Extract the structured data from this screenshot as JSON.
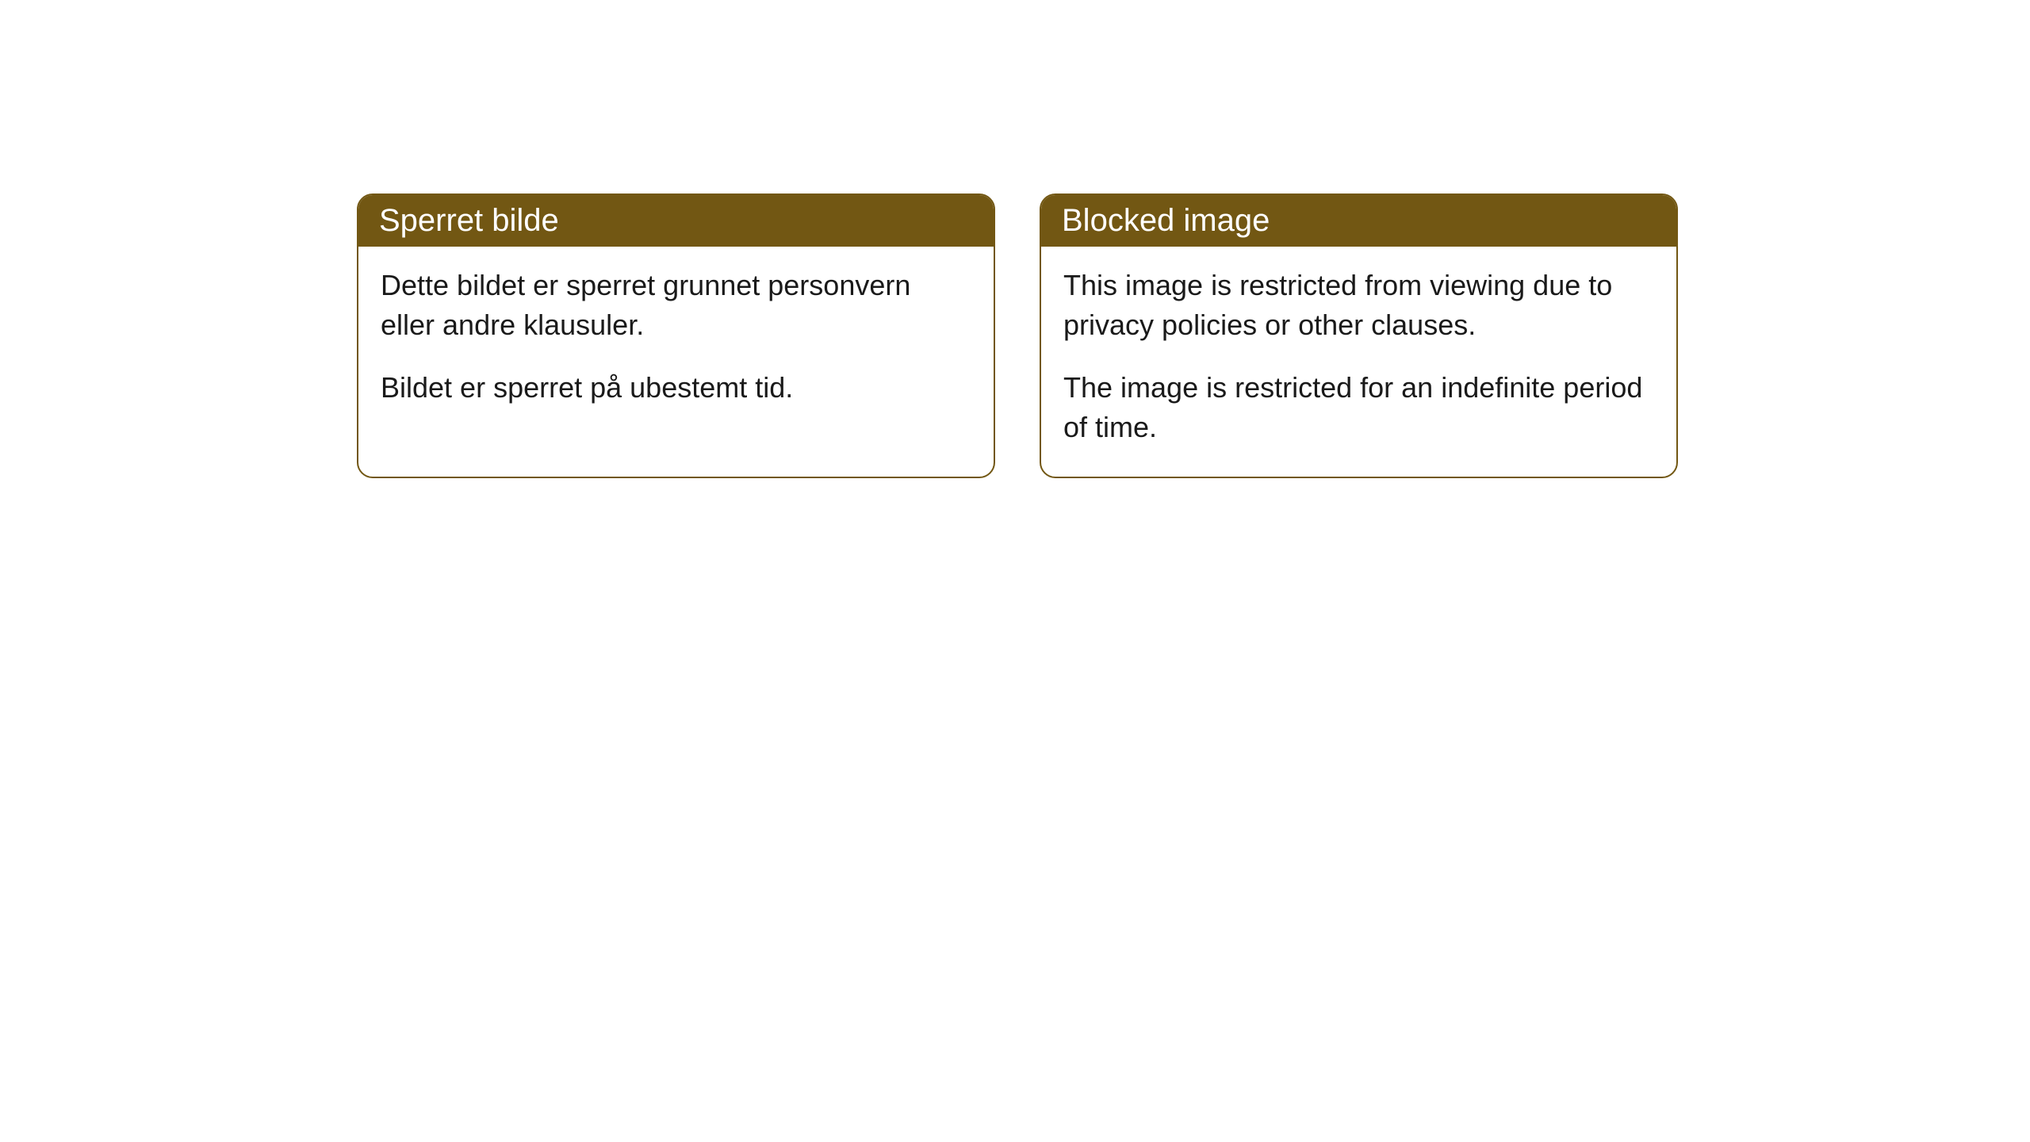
{
  "cards": [
    {
      "title": "Sperret bilde",
      "paragraph1": "Dette bildet er sperret grunnet personvern eller andre klausuler.",
      "paragraph2": "Bildet er sperret på ubestemt tid."
    },
    {
      "title": "Blocked image",
      "paragraph1": "This image is restricted from viewing due to privacy policies or other clauses.",
      "paragraph2": "The image is restricted for an indefinite period of time."
    }
  ],
  "styling": {
    "header_background_color": "#725713",
    "header_text_color": "#ffffff",
    "border_color": "#725713",
    "body_text_color": "#1a1a1a",
    "background_color": "#ffffff",
    "border_radius": 20,
    "header_fontsize": 40,
    "body_fontsize": 36
  }
}
